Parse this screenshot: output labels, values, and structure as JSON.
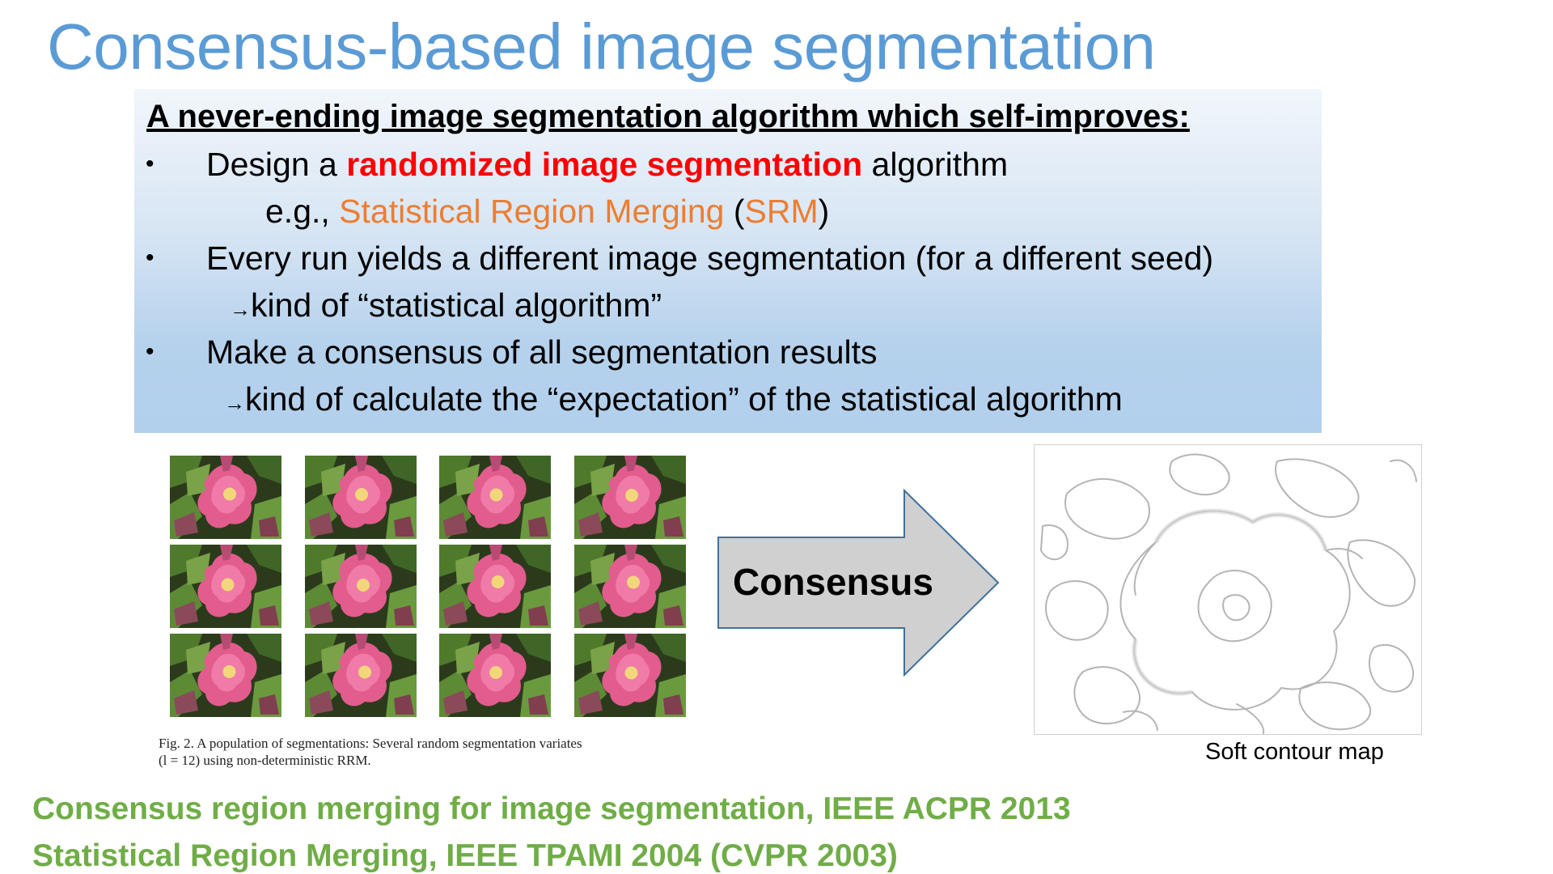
{
  "slide": {
    "title": "Consensus-based  image segmentation",
    "box": {
      "heading": "A never-ending image segmentation algorithm which self-improves:",
      "bullet": "•",
      "arrow": "→",
      "line1_pre": "Design a ",
      "line1_highlight": "randomized image segmentation",
      "line1_post": " algorithm",
      "line2_pre": "e.g., ",
      "line2_srm": "Statistical Region Merging",
      "line2_paren_open": " (",
      "line2_abbr": "SRM",
      "line2_paren_close": ")",
      "line3": "Every run yields a different image segmentation (for a different seed)",
      "line4": "kind of “statistical algorithm”",
      "line5": "Make a consensus of all segmentation results",
      "line6": "kind of calculate the “expectation” of the statistical algorithm"
    },
    "figure": {
      "caption_line1": "Fig. 2.   A population of segmentations: Several random segmentation variates",
      "caption_line2": "(l = 12) using non-deterministic RRM.",
      "tile_count": 12
    },
    "arrow_label": "Consensus",
    "contour_label": "Soft contour map",
    "references": [
      "Consensus region merging for image segmentation, IEEE ACPR 2013",
      "Statistical Region Merging, IEEE TPAMI 2004 (CVPR 2003)"
    ],
    "colors": {
      "title": "#5b9bd5",
      "highlight": "#ff0000",
      "srm": "#ed7d31",
      "reference": "#70ad47",
      "arrow_fill": "#d0d0d0",
      "arrow_stroke": "#41719c"
    }
  }
}
